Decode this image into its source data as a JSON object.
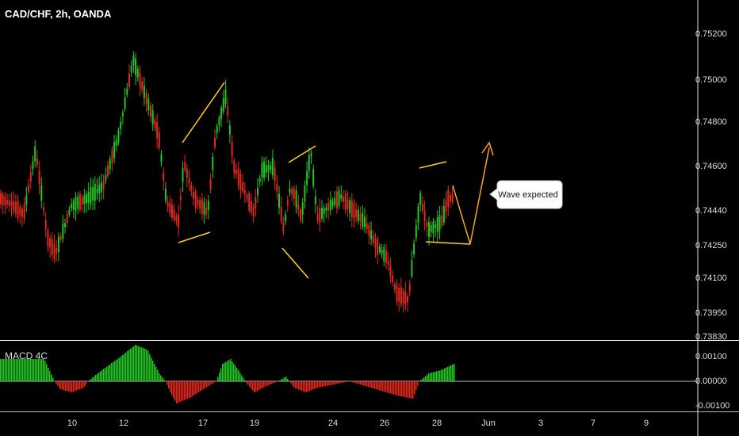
{
  "header": {
    "title": "CAD/CHF, 2h, OANDA"
  },
  "macd": {
    "label": "MACD 4C"
  },
  "annotation": {
    "text": "Wave expected"
  },
  "chart_data": {
    "type": "candlestick",
    "price_axis": {
      "ticks": [
        "0.75200",
        "0.75000",
        "0.74800",
        "0.74600",
        "0.74440",
        "0.74250",
        "0.74100",
        "0.73950",
        "0.73830"
      ],
      "values": [
        0.752,
        0.75,
        0.748,
        0.746,
        0.7444,
        0.7425,
        0.741,
        0.7395,
        0.7383
      ]
    },
    "macd_axis": {
      "ticks": [
        "0.00100",
        "0.00000",
        "-0.00100"
      ],
      "values": [
        0.001,
        0.0,
        -0.001
      ]
    },
    "date_axis": {
      "ticks": [
        "10",
        "12",
        "17",
        "19",
        "24",
        "26",
        "28",
        "Jun",
        "3",
        "7",
        "9"
      ]
    },
    "colors": {
      "up": "#1ec81e",
      "down": "#e0291c",
      "pattern": "#ffd21e",
      "projection": "#f5a623",
      "macd_up": "#1ec81e",
      "macd_down": "#e0291c"
    }
  }
}
